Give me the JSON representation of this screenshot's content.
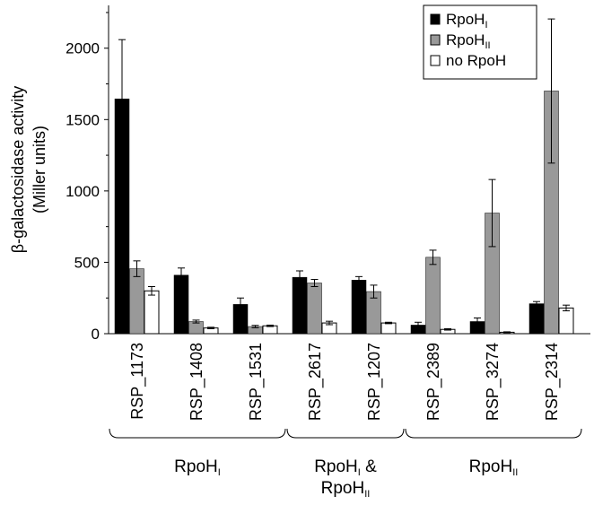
{
  "chart_data": {
    "type": "bar",
    "ylabel_line1": "β-galactosidase activity",
    "ylabel_line2": "(Miller units)",
    "ylim": [
      0,
      2300
    ],
    "yticks": [
      "0",
      "500",
      "1000",
      "1500",
      "2000"
    ],
    "ytick_values": [
      0,
      500,
      1000,
      1500,
      2000
    ],
    "categories": [
      "RSP_1173",
      "RSP_1408",
      "RSP_1531",
      "RSP_2617",
      "RSP_1207",
      "RSP_2389",
      "RSP_3274",
      "RSP_2314"
    ],
    "series": [
      {
        "name": "RpoH",
        "name_sub": "I",
        "color": "#000000",
        "values": [
          1645,
          410,
          205,
          395,
          375,
          60,
          85,
          210
        ],
        "errors": [
          415,
          50,
          45,
          45,
          25,
          20,
          25,
          15
        ]
      },
      {
        "name": "RpoH",
        "name_sub": "II",
        "color": "#999999",
        "values": [
          455,
          85,
          50,
          355,
          295,
          535,
          845,
          1700
        ],
        "errors": [
          55,
          10,
          8,
          25,
          45,
          50,
          235,
          505
        ]
      },
      {
        "name": "no RpoH",
        "name_sub": "",
        "color": "#ffffff",
        "values": [
          300,
          40,
          55,
          75,
          75,
          30,
          10,
          180
        ],
        "errors": [
          30,
          5,
          5,
          12,
          5,
          5,
          3,
          20
        ]
      }
    ],
    "groups": [
      {
        "lines": [
          {
            "text": "RpoH",
            "sub": "I"
          }
        ]
      },
      {
        "lines": [
          {
            "text": "RpoH",
            "sub": "I",
            "after": " &"
          },
          {
            "text": "RpoH",
            "sub": "II"
          }
        ]
      },
      {
        "lines": [
          {
            "text": "RpoH",
            "sub": "II"
          }
        ]
      }
    ],
    "legend_position": "top-right"
  }
}
